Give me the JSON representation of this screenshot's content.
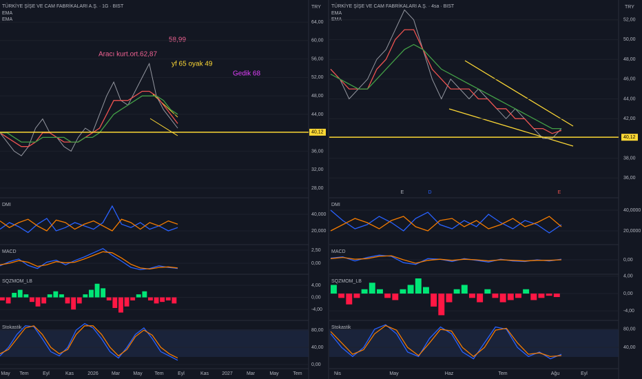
{
  "left": {
    "title": "TÜRKİYE ŞİŞE VE CAM FABRİKALARI A.Ş. · 1G · BIST",
    "legend": [
      "EMA",
      "EMA"
    ],
    "currency": "TRY",
    "annotations": [
      "58,99",
      "Aracı kurt.ort.62,87",
      "yf 65 oyak 49",
      "Gedik 68"
    ],
    "main": {
      "ylim": [
        25.9,
        68.8
      ],
      "yticks": [
        {
          "value": 64,
          "label": "64,00"
        },
        {
          "value": 60,
          "label": "60,00"
        },
        {
          "value": 56,
          "label": "56,00"
        },
        {
          "value": 52,
          "label": "52,00"
        },
        {
          "value": 48,
          "label": "48,00"
        },
        {
          "value": 44,
          "label": "44,00"
        },
        {
          "value": 36,
          "label": "36,00"
        },
        {
          "value": 32,
          "label": "32,00"
        },
        {
          "value": 28,
          "label": "28,00"
        }
      ],
      "level": {
        "value": 40.12,
        "label": "40,12"
      },
      "series": [
        {
          "color": "#9598a1",
          "values": [
            40,
            38,
            36,
            35,
            37,
            41,
            43,
            40,
            39,
            37,
            36,
            39,
            41,
            40,
            44,
            48,
            51,
            47,
            46,
            49,
            52,
            55,
            48,
            45,
            43,
            41
          ]
        },
        {
          "color": "#ef5350",
          "values": [
            40,
            39,
            38,
            37,
            37,
            38,
            40,
            40,
            39,
            38,
            38,
            38,
            39,
            40,
            41,
            44,
            47,
            47,
            47,
            48,
            49,
            49,
            48,
            46,
            44,
            42
          ]
        },
        {
          "color": "#43a047",
          "values": [
            40,
            40,
            39,
            38,
            38,
            38,
            39,
            39,
            39,
            39,
            38,
            38,
            39,
            39,
            40,
            42,
            44,
            45,
            46,
            47,
            48,
            48,
            48,
            47,
            45,
            44
          ]
        }
      ]
    },
    "panes": [
      {
        "label": "DMI",
        "ylim": [
          3340,
          59160
        ],
        "yticks": [
          {
            "value": 40000,
            "label": "40,000"
          },
          {
            "value": 20000,
            "label": "20,000"
          }
        ],
        "series": [
          {
            "color": "#2962ff",
            "values": [
              22000,
              30000,
              25000,
              18000,
              28000,
              35000,
              20000,
              24000,
              30000,
              26000,
              22000,
              30000,
              50000,
              28000,
              24000,
              30000,
              22000,
              26000,
              20000,
              24000
            ]
          },
          {
            "color": "#f57c00",
            "values": [
              32000,
              24000,
              30000,
              34000,
              26000,
              20000,
              33000,
              30000,
              22000,
              28000,
              32000,
              26000,
              20000,
              34000,
              30000,
              22000,
              30000,
              26000,
              32000,
              28000
            ]
          }
        ]
      },
      {
        "label": "MACD",
        "ylim": [
          -2.1,
          3.42
        ],
        "yticks": [
          {
            "value": 2.5,
            "label": "2,50"
          },
          {
            "value": 0,
            "label": "0,00"
          }
        ],
        "series": [
          {
            "color": "#2962ff",
            "values": [
              -0.5,
              0.3,
              0.8,
              -0.4,
              -1,
              0.2,
              0.6,
              -0.3,
              0.5,
              1.2,
              2,
              2.8,
              1.5,
              0.4,
              -0.8,
              -1.2,
              -1,
              -0.5,
              -0.8,
              -1
            ]
          },
          {
            "color": "#f57c00",
            "values": [
              -0.3,
              0,
              0.5,
              0.2,
              -0.6,
              -0.3,
              0.3,
              0.1,
              0.2,
              0.8,
              1.5,
              2.2,
              2,
              1,
              -0.2,
              -0.9,
              -1.1,
              -0.8,
              -0.7,
              -0.9
            ]
          }
        ]
      },
      {
        "label": "SQZMOM_LB",
        "ylim": [
          -7.6,
          7.4
        ],
        "yticks": [
          {
            "value": 4,
            "label": "4,00"
          },
          {
            "value": 0,
            "label": "0,00"
          },
          {
            "value": -4,
            "label": "-4,00"
          }
        ],
        "hist": {
          "up": "#00e676",
          "down": "#ff1744",
          "values": [
            -1,
            -2,
            1.5,
            2.5,
            1,
            -1.5,
            -3,
            -2,
            1,
            2,
            1,
            -2,
            -4,
            -2,
            1,
            2.5,
            4.5,
            3,
            -1,
            -3.5,
            -5,
            -3,
            -1,
            1,
            2,
            -1,
            -2,
            -1.5,
            -1,
            -2
          ]
        }
      },
      {
        "label": "Stokastik",
        "ylim": [
          -9.6,
          100.8
        ],
        "yticks": [
          {
            "value": 80,
            "label": "80,00"
          },
          {
            "value": 40,
            "label": "40,00"
          },
          {
            "value": 0,
            "label": "0,00"
          }
        ],
        "series": [
          {
            "color": "#2962ff",
            "values": [
              20,
              40,
              70,
              90,
              88,
              60,
              30,
              20,
              40,
              80,
              95,
              85,
              60,
              30,
              15,
              40,
              70,
              85,
              60,
              30,
              20,
              10
            ]
          },
          {
            "color": "#f57c00",
            "values": [
              25,
              35,
              60,
              85,
              90,
              70,
              40,
              25,
              35,
              70,
              90,
              90,
              70,
              40,
              20,
              35,
              65,
              80,
              68,
              40,
              25,
              15
            ]
          }
        ]
      }
    ],
    "x_labels": [
      "May",
      "Tem",
      "Eyl",
      "Kas",
      "2026",
      "Mar",
      "May",
      "Tem",
      "Eyl",
      "Kas",
      "2027",
      "Mar",
      "May",
      "Tem"
    ]
  },
  "right": {
    "title": "TÜRKİYE ŞİŞE VE CAM FABRİKALARI A.Ş. · 4sa · BIST",
    "legend": [
      "EMA",
      "EMA"
    ],
    "currency": "TRY",
    "events": [
      "E",
      "D",
      "E"
    ],
    "main": {
      "ylim": [
        34,
        54
      ],
      "yticks": [
        {
          "value": 52,
          "label": "52,00"
        },
        {
          "value": 50,
          "label": "50,00"
        },
        {
          "value": 48,
          "label": "48,00"
        },
        {
          "value": 46,
          "label": "46,00"
        },
        {
          "value": 44,
          "label": "44,00"
        },
        {
          "value": 42,
          "label": "42,00"
        },
        {
          "value": 38,
          "label": "38,00"
        },
        {
          "value": 36,
          "label": "36,00"
        }
      ],
      "level": {
        "value": 40.12,
        "label": "40,12"
      },
      "series": [
        {
          "color": "#9598a1",
          "values": [
            47,
            46,
            44,
            45,
            46,
            48,
            49,
            51,
            53,
            52,
            49,
            46,
            44,
            46,
            45,
            44,
            45,
            44,
            43,
            42,
            43,
            42,
            41,
            40,
            40,
            41
          ]
        },
        {
          "color": "#ef5350",
          "values": [
            47,
            46,
            45,
            45,
            45,
            47,
            48,
            50,
            51,
            51,
            49,
            47,
            46,
            45,
            45,
            45,
            44,
            44,
            43,
            43,
            42,
            42,
            41,
            41,
            40.5,
            40.8
          ]
        },
        {
          "color": "#43a047",
          "values": [
            46.5,
            46,
            45.5,
            45,
            45,
            46,
            47,
            48,
            49,
            49.5,
            49,
            48,
            47,
            46.5,
            46,
            45.5,
            45,
            44.5,
            44,
            43.5,
            43,
            42.5,
            42,
            41.5,
            41,
            41
          ]
        }
      ]
    },
    "panes": [
      {
        "label": "DMI",
        "ylim": [
          6660,
          51340
        ],
        "yticks": [
          {
            "value": 40000,
            "label": "40,0000"
          },
          {
            "value": 20000,
            "label": "20,0000"
          }
        ],
        "series": [
          {
            "color": "#2962ff",
            "values": [
              40000,
              30000,
              22000,
              26000,
              34000,
              28000,
              20000,
              32000,
              38000,
              26000,
              22000,
              30000,
              24000,
              36000,
              28000,
              22000,
              30000,
              26000,
              18000,
              26000
            ]
          },
          {
            "color": "#f57c00",
            "values": [
              20000,
              26000,
              32000,
              28000,
              22000,
              30000,
              34000,
              24000,
              20000,
              30000,
              32000,
              24000,
              30000,
              22000,
              26000,
              32000,
              24000,
              28000,
              34000,
              24000
            ]
          }
        ]
      },
      {
        "label": "MACD",
        "ylim": [
          -2.5,
          2.5
        ],
        "yticks": [
          {
            "value": 0,
            "label": "0,00"
          }
        ],
        "series": [
          {
            "color": "#2962ff",
            "values": [
              0.3,
              0.5,
              -0.2,
              0.4,
              0.8,
              0.6,
              -0.5,
              -0.8,
              0.2,
              0.1,
              -0.3,
              0.2,
              -0.1,
              -0.4,
              0.1,
              -0.2,
              -0.3,
              0,
              -0.2,
              0.1
            ]
          },
          {
            "color": "#f57c00",
            "values": [
              0.2,
              0.4,
              0.1,
              0.2,
              0.6,
              0.7,
              0,
              -0.6,
              -0.1,
              0.1,
              -0.1,
              0.1,
              0,
              -0.2,
              0,
              -0.1,
              -0.2,
              -0.1,
              -0.1,
              0
            ]
          }
        ]
      },
      {
        "label": "SQZMOM_LB",
        "ylim": [
          -6.2,
          4.3
        ],
        "yticks": [
          {
            "value": 4,
            "label": "4,00"
          },
          {
            "value": 0,
            "label": "0,00"
          },
          {
            "value": -4,
            "label": "-4,00"
          }
        ],
        "hist": {
          "up": "#00e676",
          "down": "#ff1744",
          "values": [
            2,
            -1,
            -2.5,
            -1,
            1,
            2.5,
            1,
            -1,
            -1.5,
            1,
            2,
            3.5,
            1.5,
            -3,
            -5,
            -2,
            1,
            2,
            -1,
            -2,
            1,
            -1,
            -2,
            -1.5,
            -1,
            1,
            -1.5,
            -1,
            -0.5,
            -0.8
          ]
        }
      },
      {
        "label": "Stokastik",
        "ylim": [
          -6.7,
          97.8
        ],
        "yticks": [
          {
            "value": 80,
            "label": "80,00"
          },
          {
            "value": 40,
            "label": "40,00"
          }
        ],
        "series": [
          {
            "color": "#2962ff",
            "values": [
              70,
              40,
              20,
              40,
              80,
              90,
              70,
              30,
              20,
              60,
              85,
              70,
              30,
              15,
              50,
              85,
              80,
              40,
              20,
              30,
              15,
              25
            ]
          },
          {
            "color": "#f57c00",
            "values": [
              75,
              50,
              25,
              35,
              70,
              88,
              78,
              40,
              22,
              50,
              80,
              76,
              40,
              20,
              40,
              78,
              82,
              50,
              25,
              28,
              20,
              22
            ]
          }
        ]
      }
    ],
    "x_labels": [
      "Nis",
      "May",
      "Haz",
      "Tem",
      "Ağu",
      "Eyl"
    ]
  }
}
